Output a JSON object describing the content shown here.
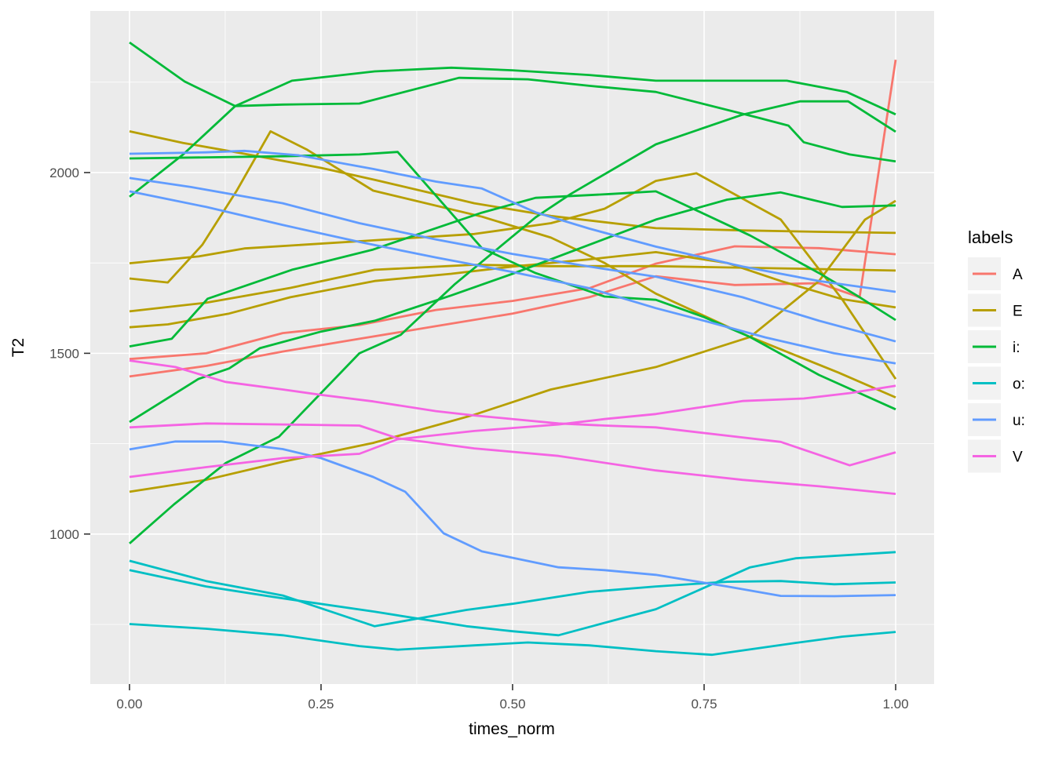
{
  "chart_data": {
    "type": "line",
    "xlabel": "times_norm",
    "ylabel": "T2",
    "x_ticks": [
      0,
      0.25,
      0.5,
      0.75,
      1
    ],
    "x_tick_labels": [
      "0.00",
      "0.25",
      "0.50",
      "0.75",
      "1.00"
    ],
    "x_minor_ticks": [
      0.125,
      0.375,
      0.625,
      0.875
    ],
    "y_ticks": [
      1000,
      1500,
      2000
    ],
    "y_tick_labels": [
      "1000",
      "1500",
      "2000"
    ],
    "y_minor_ticks": [
      750,
      1250,
      1750,
      2250
    ],
    "x_range": [
      -0.0512,
      1.0502
    ],
    "y_range": [
      585,
      2447
    ],
    "grid": true,
    "panel_fill": "#EBEBEB",
    "gridline_color": "#FFFFFF",
    "tick_color": "#333333",
    "legend": {
      "title": "labels",
      "position": "right",
      "key_fill": "#F2F2F2",
      "entries": [
        {
          "label": "A",
          "color": "#F8766D"
        },
        {
          "label": "E",
          "color": "#B79F00"
        },
        {
          "label": "i:",
          "color": "#00BA38"
        },
        {
          "label": "o:",
          "color": "#00BFC4"
        },
        {
          "label": "u:",
          "color": "#619CFF"
        },
        {
          "label": "V",
          "color": "#F564E3"
        }
      ]
    },
    "series": [
      {
        "label": "A",
        "color": "#F8766D",
        "x": [
          0,
          0.1,
          0.2,
          0.3,
          0.4,
          0.5,
          0.6,
          0.687,
          0.79,
          0.9,
          1
        ],
        "y": [
          1484,
          1500,
          1556,
          1578,
          1620,
          1645,
          1680,
          1748,
          1796,
          1791,
          1774
        ]
      },
      {
        "label": "A",
        "color": "#F8766D",
        "x": [
          0,
          0.1,
          0.2,
          0.3,
          0.4,
          0.5,
          0.6,
          0.687,
          0.79,
          0.9,
          0.953,
          1
        ],
        "y": [
          1436,
          1465,
          1505,
          1540,
          1575,
          1610,
          1655,
          1713,
          1689,
          1694,
          1655,
          2312
        ]
      },
      {
        "label": "E",
        "color": "#B79F00",
        "x": [
          0,
          0.07,
          0.14,
          0.25,
          0.32,
          0.45,
          0.55,
          0.687,
          0.8,
          0.9,
          1
        ],
        "y": [
          2114,
          2082,
          2056,
          2013,
          1980,
          1915,
          1880,
          1846,
          1840,
          1836,
          1833
        ]
      },
      {
        "label": "E",
        "color": "#B79F00",
        "x": [
          0,
          0.09,
          0.15,
          0.3,
          0.45,
          0.55,
          0.62,
          0.687,
          0.74,
          0.85,
          0.93,
          1
        ],
        "y": [
          1749,
          1768,
          1790,
          1810,
          1830,
          1860,
          1900,
          1977,
          1998,
          1870,
          1650,
          1429
        ]
      },
      {
        "label": "E",
        "color": "#B79F00",
        "x": [
          0,
          0.05,
          0.095,
          0.14,
          0.184,
          0.232,
          0.318,
          0.46,
          0.55,
          0.62,
          0.687,
          0.81,
          0.925,
          1
        ],
        "y": [
          1707,
          1696,
          1800,
          1950,
          2114,
          2063,
          1950,
          1878,
          1820,
          1750,
          1665,
          1545,
          1447,
          1378
        ]
      },
      {
        "label": "E",
        "color": "#B79F00",
        "x": [
          0,
          0.1,
          0.21,
          0.32,
          0.45,
          0.55,
          0.687,
          0.85,
          1
        ],
        "y": [
          1616,
          1640,
          1681,
          1731,
          1745,
          1741,
          1741,
          1735,
          1729
        ]
      },
      {
        "label": "E",
        "color": "#B79F00",
        "x": [
          0,
          0.05,
          0.13,
          0.21,
          0.32,
          0.42,
          0.5,
          0.6,
          0.687,
          0.78,
          0.85,
          0.93,
          1
        ],
        "y": [
          1572,
          1580,
          1610,
          1655,
          1700,
          1720,
          1740,
          1760,
          1780,
          1750,
          1700,
          1650,
          1627
        ]
      },
      {
        "label": "E",
        "color": "#B79F00",
        "x": [
          0,
          0.1,
          0.2,
          0.318,
          0.45,
          0.55,
          0.687,
          0.81,
          0.9,
          0.96,
          1
        ],
        "y": [
          1117,
          1150,
          1200,
          1252,
          1330,
          1400,
          1462,
          1545,
          1700,
          1870,
          1922
        ]
      },
      {
        "label": "i:",
        "color": "#00BA38",
        "x": [
          0,
          0.072,
          0.138,
          0.2,
          0.3,
          0.43,
          0.52,
          0.6,
          0.687,
          0.82,
          0.86,
          0.88,
          0.94,
          1
        ],
        "y": [
          2360,
          2252,
          2184,
          2188,
          2191,
          2262,
          2258,
          2240,
          2223,
          2152,
          2130,
          2084,
          2050,
          2031
        ]
      },
      {
        "label": "i:",
        "color": "#00BA38",
        "x": [
          0,
          0.1,
          0.2,
          0.3,
          0.35,
          0.46,
          0.53,
          0.62,
          0.687,
          0.75,
          0.81,
          0.9,
          1
        ],
        "y": [
          2039,
          2042,
          2045,
          2050,
          2057,
          1791,
          1722,
          1657,
          1648,
          1600,
          1545,
          1440,
          1345
        ]
      },
      {
        "label": "i:",
        "color": "#00BA38",
        "x": [
          0,
          0.07,
          0.138,
          0.212,
          0.32,
          0.42,
          0.5,
          0.6,
          0.687,
          0.858,
          0.936,
          1
        ],
        "y": [
          1933,
          2050,
          2184,
          2254,
          2280,
          2290,
          2283,
          2270,
          2254,
          2254,
          2223,
          2161
        ]
      },
      {
        "label": "i:",
        "color": "#00BA38",
        "x": [
          0,
          0.055,
          0.102,
          0.212,
          0.318,
          0.39,
          0.46,
          0.53,
          0.63,
          0.687,
          0.81,
          0.9,
          0.95,
          1
        ],
        "y": [
          1519,
          1540,
          1651,
          1731,
          1787,
          1839,
          1889,
          1930,
          1941,
          1948,
          1826,
          1722,
          1659,
          1592
        ]
      },
      {
        "label": "i:",
        "color": "#00BA38",
        "x": [
          0,
          0.09,
          0.13,
          0.17,
          0.25,
          0.32,
          0.42,
          0.5,
          0.6,
          0.687,
          0.78,
          0.85,
          0.93,
          1
        ],
        "y": [
          1310,
          1429,
          1458,
          1514,
          1560,
          1590,
          1660,
          1720,
          1800,
          1870,
          1925,
          1945,
          1905,
          1909
        ]
      },
      {
        "label": "i:",
        "color": "#00BA38",
        "x": [
          0,
          0.058,
          0.126,
          0.195,
          0.3,
          0.354,
          0.425,
          0.53,
          0.576,
          0.687,
          0.8,
          0.875,
          0.938,
          1
        ],
        "y": [
          974,
          1082,
          1197,
          1269,
          1500,
          1551,
          1692,
          1876,
          1941,
          2078,
          2160,
          2197,
          2197,
          2113
        ]
      },
      {
        "label": "o:",
        "color": "#00BFC4",
        "x": [
          0,
          0.1,
          0.2,
          0.32,
          0.44,
          0.5,
          0.6,
          0.687,
          0.78,
          0.85,
          0.92,
          1
        ],
        "y": [
          926,
          870,
          830,
          745,
          790,
          807,
          840,
          855,
          868,
          870,
          861,
          866
        ]
      },
      {
        "label": "o:",
        "color": "#00BFC4",
        "x": [
          0,
          0.1,
          0.2,
          0.32,
          0.44,
          0.5,
          0.56,
          0.63,
          0.687,
          0.81,
          0.87,
          1
        ],
        "y": [
          900,
          855,
          822,
          785,
          745,
          731,
          720,
          760,
          792,
          908,
          933,
          950
        ]
      },
      {
        "label": "o:",
        "color": "#00BFC4",
        "x": [
          0,
          0.1,
          0.2,
          0.3,
          0.35,
          0.45,
          0.52,
          0.6,
          0.687,
          0.76,
          0.87,
          0.93,
          1
        ],
        "y": [
          751,
          738,
          720,
          690,
          680,
          692,
          700,
          692,
          676,
          666,
          699,
          716,
          729
        ]
      },
      {
        "label": "u:",
        "color": "#619CFF",
        "x": [
          0,
          0.1,
          0.15,
          0.22,
          0.318,
          0.4,
          0.46,
          0.53,
          0.6,
          0.687,
          0.8,
          0.9,
          1
        ],
        "y": [
          2052,
          2056,
          2060,
          2048,
          2010,
          1975,
          1956,
          1890,
          1845,
          1795,
          1740,
          1700,
          1670
        ]
      },
      {
        "label": "u:",
        "color": "#619CFF",
        "x": [
          0,
          0.08,
          0.2,
          0.3,
          0.4,
          0.5,
          0.6,
          0.687,
          0.8,
          0.9,
          1
        ],
        "y": [
          1985,
          1960,
          1915,
          1860,
          1815,
          1775,
          1740,
          1712,
          1655,
          1590,
          1533
        ]
      },
      {
        "label": "u:",
        "color": "#619CFF",
        "x": [
          0,
          0.1,
          0.2,
          0.3,
          0.4,
          0.5,
          0.6,
          0.687,
          0.75,
          0.83,
          0.92,
          1
        ],
        "y": [
          1948,
          1905,
          1855,
          1808,
          1765,
          1725,
          1680,
          1625,
          1590,
          1544,
          1500,
          1472
        ]
      },
      {
        "label": "u:",
        "color": "#619CFF",
        "x": [
          0,
          0.06,
          0.12,
          0.2,
          0.25,
          0.318,
          0.36,
          0.41,
          0.46,
          0.56,
          0.62,
          0.687,
          0.78,
          0.85,
          0.92,
          1
        ],
        "y": [
          1234,
          1256,
          1256,
          1235,
          1210,
          1158,
          1117,
          1002,
          952,
          908,
          900,
          887,
          855,
          829,
          828,
          831
        ]
      },
      {
        "label": "V",
        "color": "#F564E3",
        "x": [
          0,
          0.06,
          0.125,
          0.2,
          0.25,
          0.318,
          0.4,
          0.45,
          0.56,
          0.62,
          0.687,
          0.78,
          0.85,
          0.89,
          0.94,
          1
        ],
        "y": [
          1480,
          1462,
          1421,
          1400,
          1385,
          1367,
          1340,
          1328,
          1306,
          1300,
          1295,
          1272,
          1255,
          1226,
          1190,
          1226
        ]
      },
      {
        "label": "V",
        "color": "#F564E3",
        "x": [
          0,
          0.1,
          0.2,
          0.3,
          0.35,
          0.45,
          0.56,
          0.687,
          0.8,
          0.9,
          1
        ],
        "y": [
          1295,
          1306,
          1303,
          1300,
          1265,
          1237,
          1216,
          1176,
          1150,
          1132,
          1111
        ]
      },
      {
        "label": "V",
        "color": "#F564E3",
        "x": [
          0,
          0.1,
          0.2,
          0.3,
          0.35,
          0.45,
          0.56,
          0.62,
          0.687,
          0.8,
          0.88,
          0.94,
          1
        ],
        "y": [
          1158,
          1185,
          1210,
          1222,
          1262,
          1285,
          1303,
          1318,
          1332,
          1368,
          1375,
          1390,
          1410
        ]
      }
    ]
  }
}
